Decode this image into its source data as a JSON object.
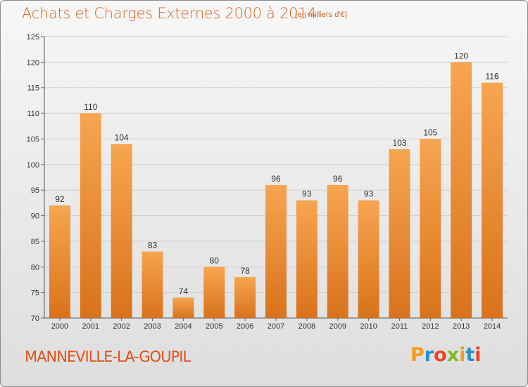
{
  "title": "Achats et Charges Externes 2000 à 2014",
  "subtitle": "(en milliers d'€)",
  "commune": "MANNEVILLE-LA-GOUPIL",
  "logo": {
    "text": "Proxiti",
    "letter_colors": [
      "#f39b1e",
      "#2a8fcf",
      "#e8452c",
      "#7fba2a",
      "#f39b1e",
      "#2a8fcf",
      "#e8452c"
    ]
  },
  "colors": {
    "title": "#d4651f",
    "bar_top": "#f7a550",
    "bar_bottom": "#d9721c",
    "grid": "#cfcfcf"
  },
  "chart_data": {
    "type": "bar",
    "title": "Achats et Charges Externes 2000 à 2014",
    "subtitle": "(en milliers d'€)",
    "categories": [
      "2000",
      "2001",
      "2002",
      "2003",
      "2004",
      "2005",
      "2006",
      "2007",
      "2008",
      "2009",
      "2010",
      "2011",
      "2012",
      "2013",
      "2014"
    ],
    "values": [
      92,
      110,
      104,
      83,
      74,
      80,
      78,
      96,
      93,
      96,
      93,
      103,
      105,
      120,
      116
    ],
    "ylim": [
      70,
      125
    ],
    "yticks": [
      70,
      75,
      80,
      85,
      90,
      95,
      100,
      105,
      110,
      115,
      120,
      125
    ],
    "grid": true
  }
}
